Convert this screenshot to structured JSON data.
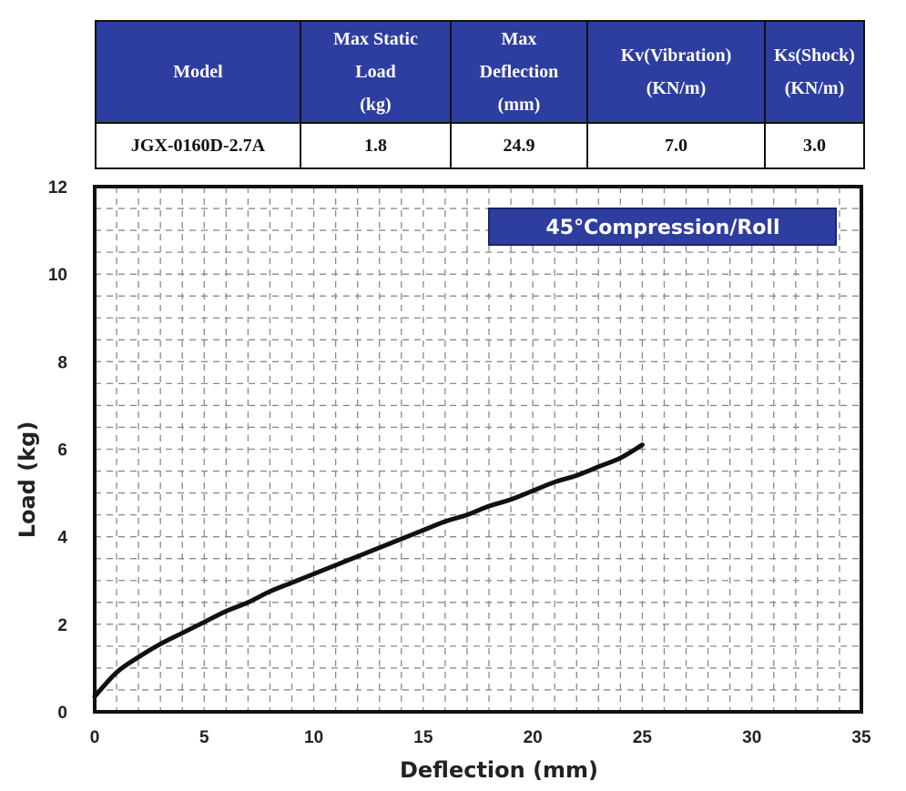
{
  "table": {
    "headers": [
      "Model",
      "Max Static\nLoad\n(kg)",
      "Max\nDeflection\n(mm)",
      "Kv(Vibration)\n(KN/m)",
      "Ks(Shock)\n(KN/m)"
    ],
    "row": [
      "JGX-0160D-2.7A",
      "1.8",
      "24.9",
      "7.0",
      "3.0"
    ]
  },
  "chart_data": {
    "type": "line",
    "title": "45°Compression/Roll",
    "xlabel": "Deflection (mm)",
    "ylabel": "Load (kg)",
    "xlim": [
      0,
      35
    ],
    "ylim": [
      0,
      12
    ],
    "x_ticks": [
      "0",
      "5",
      "10",
      "15",
      "20",
      "25",
      "30",
      "35"
    ],
    "y_ticks": [
      "0",
      "2",
      "4",
      "6",
      "8",
      "10",
      "12"
    ],
    "grid": true,
    "legend_position": "top-right",
    "series": [
      {
        "color": "#111111",
        "x": [
          0,
          1,
          2,
          3,
          4,
          5,
          6,
          7,
          8,
          9,
          10,
          11,
          12,
          13,
          14,
          15,
          16,
          17,
          18,
          19,
          20,
          21,
          22,
          23,
          24,
          25
        ],
        "y": [
          0.35,
          0.9,
          1.25,
          1.55,
          1.8,
          2.05,
          2.3,
          2.5,
          2.75,
          2.95,
          3.15,
          3.35,
          3.55,
          3.75,
          3.95,
          4.15,
          4.35,
          4.5,
          4.7,
          4.85,
          5.05,
          5.25,
          5.4,
          5.6,
          5.8,
          6.1
        ]
      }
    ]
  }
}
